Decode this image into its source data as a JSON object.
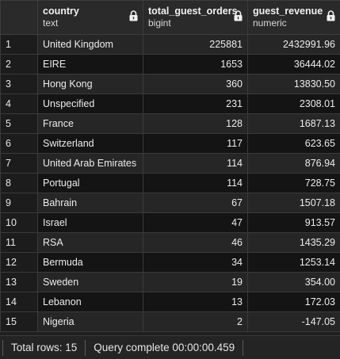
{
  "grid": {
    "columns": [
      {
        "name": "",
        "type": ""
      },
      {
        "name": "country",
        "type": "text"
      },
      {
        "name": "total_guest_orders",
        "type": "bigint"
      },
      {
        "name": "guest_revenue",
        "type": "numeric"
      }
    ],
    "rows": [
      {
        "n": "1",
        "country": "United Kingdom",
        "orders": "225881",
        "revenue": "2432991.96"
      },
      {
        "n": "2",
        "country": "EIRE",
        "orders": "1653",
        "revenue": "36444.02"
      },
      {
        "n": "3",
        "country": "Hong Kong",
        "orders": "360",
        "revenue": "13830.50"
      },
      {
        "n": "4",
        "country": "Unspecified",
        "orders": "231",
        "revenue": "2308.01"
      },
      {
        "n": "5",
        "country": "France",
        "orders": "128",
        "revenue": "1687.13"
      },
      {
        "n": "6",
        "country": "Switzerland",
        "orders": "117",
        "revenue": "623.65"
      },
      {
        "n": "7",
        "country": "United Arab Emirates",
        "orders": "114",
        "revenue": "876.94"
      },
      {
        "n": "8",
        "country": "Portugal",
        "orders": "114",
        "revenue": "728.75"
      },
      {
        "n": "9",
        "country": "Bahrain",
        "orders": "67",
        "revenue": "1507.18"
      },
      {
        "n": "10",
        "country": "Israel",
        "orders": "47",
        "revenue": "913.57"
      },
      {
        "n": "11",
        "country": "RSA",
        "orders": "46",
        "revenue": "1435.29"
      },
      {
        "n": "12",
        "country": "Bermuda",
        "orders": "34",
        "revenue": "1253.14"
      },
      {
        "n": "13",
        "country": "Sweden",
        "orders": "19",
        "revenue": "354.00"
      },
      {
        "n": "14",
        "country": "Lebanon",
        "orders": "13",
        "revenue": "172.03"
      },
      {
        "n": "15",
        "country": "Nigeria",
        "orders": "2",
        "revenue": "-147.05"
      }
    ]
  },
  "status": {
    "total_rows": "Total rows: 15",
    "query_status": "Query complete 00:00:00.459"
  },
  "icons": {
    "lock": "lock-icon"
  }
}
